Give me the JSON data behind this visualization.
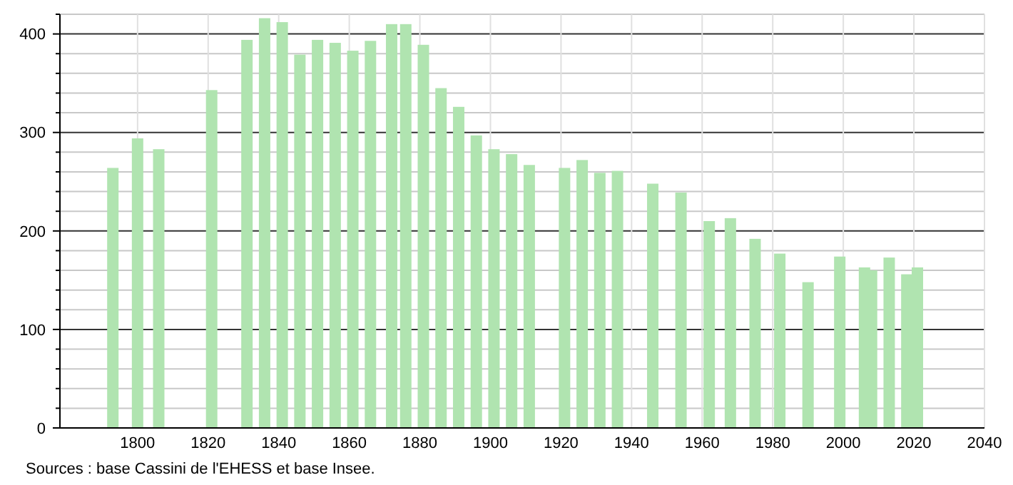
{
  "chart_data": {
    "type": "bar",
    "x": [
      1793,
      1800,
      1806,
      1821,
      1831,
      1836,
      1841,
      1846,
      1851,
      1856,
      1861,
      1866,
      1872,
      1876,
      1881,
      1886,
      1891,
      1896,
      1901,
      1906,
      1911,
      1921,
      1926,
      1931,
      1936,
      1946,
      1954,
      1962,
      1968,
      1975,
      1982,
      1990,
      1999,
      2006,
      2008,
      2013,
      2018,
      2021
    ],
    "values": [
      264,
      294,
      283,
      343,
      394,
      416,
      412,
      379,
      394,
      391,
      383,
      393,
      410,
      410,
      389,
      345,
      326,
      297,
      283,
      278,
      267,
      264,
      272,
      259,
      261,
      248,
      239,
      210,
      213,
      192,
      177,
      148,
      174,
      163,
      160,
      173,
      156,
      163
    ],
    "color": "#b0e4b0",
    "xlim": [
      1778,
      2040
    ],
    "xticks": [
      1800,
      1820,
      1840,
      1860,
      1880,
      1900,
      1920,
      1940,
      1960,
      1980,
      2000,
      2020,
      2040
    ],
    "ylim": [
      0,
      420
    ],
    "yticks": [
      0,
      {
        "value": 20,
        "label": null
      },
      {
        "value": 40,
        "label": null
      },
      {
        "value": 60,
        "label": null
      },
      {
        "value": 80,
        "label": null
      },
      100,
      {
        "value": 120,
        "label": null
      },
      {
        "value": 140,
        "label": null
      },
      {
        "value": 160,
        "label": null
      },
      {
        "value": 180,
        "label": null
      },
      200,
      {
        "value": 220,
        "label": null
      },
      {
        "value": 240,
        "label": null
      },
      {
        "value": 260,
        "label": null
      },
      {
        "value": 280,
        "label": null
      },
      300,
      {
        "value": 320,
        "label": null
      },
      {
        "value": 340,
        "label": null
      },
      {
        "value": 360,
        "label": null
      },
      {
        "value": 380,
        "label": null
      },
      400,
      {
        "value": 420,
        "label": null
      }
    ],
    "grid": true,
    "annotations": [
      "Sources : base Cassini de l'EHESS et base Insee."
    ]
  }
}
